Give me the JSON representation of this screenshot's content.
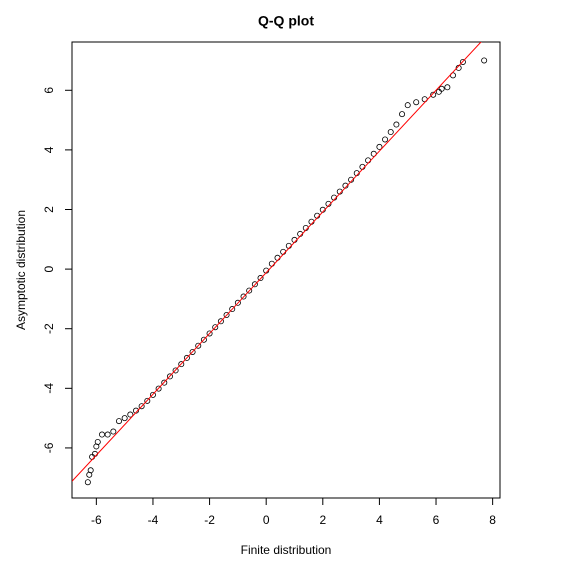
{
  "chart_data": {
    "type": "scatter",
    "title": "Q-Q plot",
    "x_label": "Finite distribution",
    "y_label": "Asymptotic distribution",
    "xlim": [
      -6.86,
      8.26
    ],
    "ylim": [
      -7.68,
      7.62
    ],
    "xticks": [
      -6,
      -4,
      -2,
      0,
      2,
      4,
      6,
      8
    ],
    "yticks": [
      -6,
      -4,
      -2,
      0,
      2,
      4,
      6
    ],
    "grid": false,
    "point_color": "#000000",
    "x": [
      -6.3,
      -6.25,
      -6.2,
      -6.15,
      -6.05,
      -6.0,
      -5.95,
      -5.8,
      -5.6,
      -5.4,
      -5.2,
      -5.0,
      -4.8,
      -4.6,
      -4.4,
      -4.2,
      -4.0,
      -3.8,
      -3.6,
      -3.4,
      -3.2,
      -3.0,
      -2.8,
      -2.6,
      -2.4,
      -2.2,
      -2.0,
      -1.8,
      -1.6,
      -1.4,
      -1.2,
      -1.0,
      -0.8,
      -0.6,
      -0.4,
      -0.2,
      0.0,
      0.2,
      0.4,
      0.6,
      0.8,
      1.0,
      1.2,
      1.4,
      1.6,
      1.8,
      2.0,
      2.2,
      2.4,
      2.6,
      2.8,
      3.0,
      3.2,
      3.4,
      3.6,
      3.8,
      4.0,
      4.2,
      4.4,
      4.6,
      4.8,
      5.0,
      5.3,
      5.6,
      5.9,
      6.1,
      6.2,
      6.4,
      6.6,
      6.8,
      6.95,
      7.7
    ],
    "y": [
      -7.15,
      -6.9,
      -6.75,
      -6.3,
      -6.2,
      -5.95,
      -5.8,
      -5.55,
      -5.55,
      -5.45,
      -5.1,
      -5.0,
      -4.88,
      -4.75,
      -4.6,
      -4.42,
      -4.22,
      -4.01,
      -3.81,
      -3.6,
      -3.4,
      -3.19,
      -2.98,
      -2.78,
      -2.57,
      -2.37,
      -2.16,
      -1.95,
      -1.75,
      -1.54,
      -1.34,
      -1.13,
      -0.92,
      -0.72,
      -0.51,
      -0.3,
      -0.05,
      0.18,
      0.38,
      0.58,
      0.78,
      0.98,
      1.18,
      1.38,
      1.59,
      1.79,
      1.99,
      2.19,
      2.4,
      2.6,
      2.8,
      3.0,
      3.22,
      3.43,
      3.65,
      3.87,
      4.1,
      4.35,
      4.6,
      4.85,
      5.2,
      5.5,
      5.6,
      5.7,
      5.85,
      5.95,
      6.05,
      6.1,
      6.5,
      6.75,
      6.95,
      7.0
    ],
    "reference_line": {
      "intercept": -0.12,
      "slope": 1.02,
      "color": "#ff0000"
    }
  }
}
